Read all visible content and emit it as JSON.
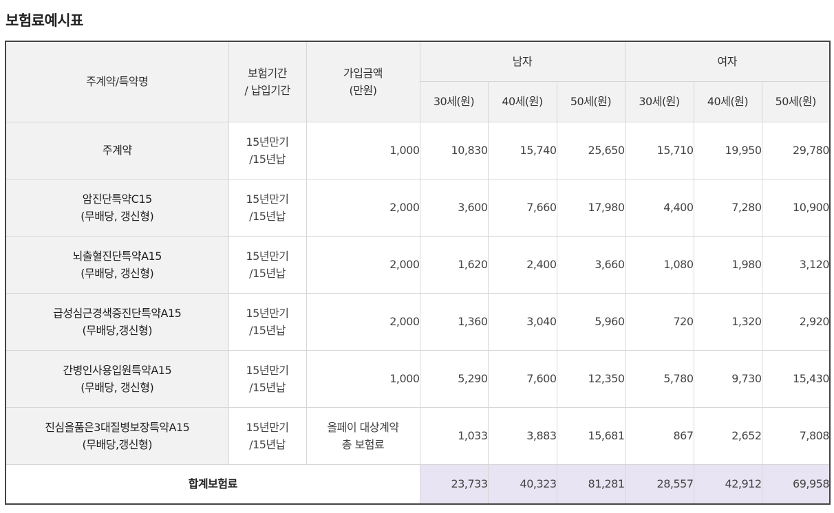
{
  "title": "보험료예시표",
  "header": {
    "col_name": "주계약/특약명",
    "col_period_line1": "보험기간",
    "col_period_line2": "/ 납입기간",
    "col_amount_line1": "가입금액",
    "col_amount_line2": "(만원)",
    "male": "남자",
    "female": "여자",
    "age30": "30세(원)",
    "age40": "40세(원)",
    "age50": "50세(원)"
  },
  "rows": [
    {
      "name_line1": "주계약",
      "name_line2": "",
      "period_line1": "15년만기",
      "period_line2": "/15년납",
      "amount": "1,000",
      "amount_line2": "",
      "male": [
        "10,830",
        "15,740",
        "25,650"
      ],
      "female": [
        "15,710",
        "19,950",
        "29,780"
      ]
    },
    {
      "name_line1": "암진단특약C15",
      "name_line2": "(무배당, 갱신형)",
      "period_line1": "15년만기",
      "period_line2": "/15년납",
      "amount": "2,000",
      "amount_line2": "",
      "male": [
        "3,600",
        "7,660",
        "17,980"
      ],
      "female": [
        "4,400",
        "7,280",
        "10,900"
      ]
    },
    {
      "name_line1": "뇌출혈진단특약A15",
      "name_line2": "(무배당, 갱신형)",
      "period_line1": "15년만기",
      "period_line2": "/15년납",
      "amount": "2,000",
      "amount_line2": "",
      "male": [
        "1,620",
        "2,400",
        "3,660"
      ],
      "female": [
        "1,080",
        "1,980",
        "3,120"
      ]
    },
    {
      "name_line1": "급성심근경색증진단특약A15",
      "name_line2": "(무배당,갱신형)",
      "period_line1": "15년만기",
      "period_line2": "/15년납",
      "amount": "2,000",
      "amount_line2": "",
      "male": [
        "1,360",
        "3,040",
        "5,960"
      ],
      "female": [
        "720",
        "1,320",
        "2,920"
      ]
    },
    {
      "name_line1": "간병인사용입원특약A15",
      "name_line2": "(무배당, 갱신형)",
      "period_line1": "15년만기",
      "period_line2": "/15년납",
      "amount": "1,000",
      "amount_line2": "",
      "male": [
        "5,290",
        "7,600",
        "12,350"
      ],
      "female": [
        "5,780",
        "9,730",
        "15,430"
      ]
    },
    {
      "name_line1": "진심을품은3대질병보장특약A15",
      "name_line2": "(무배당,갱신형)",
      "period_line1": "15년만기",
      "period_line2": "/15년납",
      "amount": "올페이 대상계약",
      "amount_line2": "총 보험료",
      "male": [
        "1,033",
        "3,883",
        "15,681"
      ],
      "female": [
        "867",
        "2,652",
        "7,808"
      ]
    }
  ],
  "total": {
    "label": "합계보험료",
    "male": [
      "23,733",
      "40,323",
      "81,281"
    ],
    "female": [
      "28,557",
      "42,912",
      "69,958"
    ]
  },
  "colors": {
    "header_bg": "#f2f2f2",
    "total_bg": "#e8e4f3",
    "border": "#d6d6d6",
    "outer_border": "#444444"
  }
}
